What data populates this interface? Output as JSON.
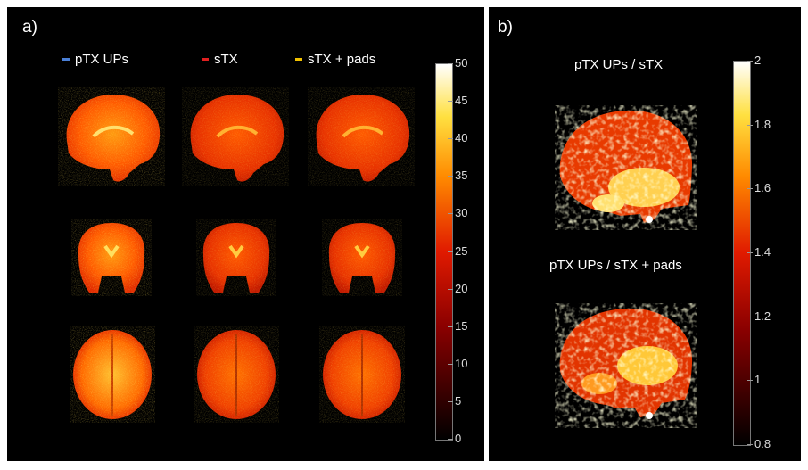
{
  "panel_a": {
    "label": "a)",
    "legend": [
      {
        "label": "pTX UPs",
        "color": "#4a7fd6"
      },
      {
        "label": "sTX",
        "color": "#e02020"
      },
      {
        "label": "sTX + pads",
        "color": "#f0c000"
      }
    ],
    "colorbar": {
      "ticks": [
        "50",
        "45",
        "40",
        "35",
        "30",
        "25",
        "20",
        "15",
        "10",
        "5",
        "0"
      ]
    }
  },
  "panel_b": {
    "label": "b)",
    "titles": [
      "pTX UPs / sTX",
      "pTX UPs / sTX + pads"
    ],
    "colorbar": {
      "ticks": [
        "2",
        "1.8",
        "1.6",
        "1.4",
        "1.2",
        "1",
        "0.8"
      ]
    }
  }
}
